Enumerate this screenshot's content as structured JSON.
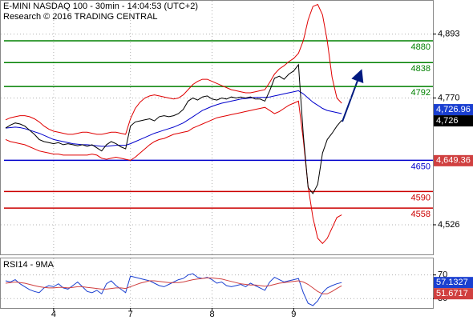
{
  "chart_data": [
    {
      "type": "line",
      "title": "E-MINI NASDAQ 100 - 30min - 14:04:53 (UTC+2)",
      "subtitle": "Research © 2016 TRADING CENTRAL",
      "x": [
        0,
        1,
        2,
        3,
        4,
        5,
        6,
        7,
        8,
        9,
        10,
        11,
        12,
        13,
        14,
        15,
        16,
        17,
        18,
        19,
        20,
        21,
        22,
        23,
        24,
        25,
        26,
        27,
        28,
        29,
        30,
        31,
        32,
        33,
        34,
        35,
        36,
        37,
        38,
        39,
        40,
        41,
        42,
        43,
        44,
        45,
        46,
        47,
        48,
        49,
        50,
        51,
        52,
        53,
        54,
        55,
        56,
        57,
        58,
        59,
        60,
        61,
        62,
        63,
        64,
        65,
        66,
        67,
        68,
        69,
        70
      ],
      "xlim": [
        -1,
        89
      ],
      "ylim": [
        4469,
        4957
      ],
      "grid": true,
      "yticks": [
        {
          "value": 4893,
          "label": "4,893"
        },
        {
          "value": 4770,
          "label": "4,770"
        },
        {
          "value": 4526,
          "label": "4,526"
        }
      ],
      "series": [
        {
          "color": "#e00000",
          "values": [
            4728,
            4732,
            4734,
            4736,
            4736,
            4734,
            4730,
            4724,
            4716,
            4710,
            4706,
            4704,
            4702,
            4700,
            4700,
            4702,
            4704,
            4704,
            4702,
            4700,
            4700,
            4702,
            4704,
            4704,
            4702,
            4700,
            4730,
            4750,
            4762,
            4770,
            4774,
            4776,
            4774,
            4772,
            4770,
            4768,
            4770,
            4776,
            4786,
            4796,
            4802,
            4806,
            4806,
            4802,
            4798,
            4794,
            4790,
            4786,
            4784,
            4782,
            4780,
            4780,
            4782,
            4784,
            4786,
            4800,
            4816,
            4826,
            4832,
            4840,
            4846,
            4856,
            4880,
            4920,
            4946,
            4950,
            4930,
            4880,
            4810,
            4770,
            4760
          ]
        },
        {
          "color": "#e00000",
          "values": [
            4690,
            4686,
            4684,
            4682,
            4680,
            4676,
            4672,
            4668,
            4666,
            4664,
            4662,
            4662,
            4660,
            4660,
            4660,
            4660,
            4660,
            4660,
            4662,
            4660,
            4654,
            4652,
            4654,
            4656,
            4654,
            4652,
            4650,
            4656,
            4664,
            4672,
            4680,
            4686,
            4690,
            4692,
            4696,
            4700,
            4702,
            4704,
            4706,
            4712,
            4716,
            4720,
            4724,
            4728,
            4732,
            4734,
            4736,
            4738,
            4740,
            4742,
            4744,
            4746,
            4748,
            4750,
            4752,
            4746,
            4740,
            4744,
            4750,
            4756,
            4760,
            4764,
            4690,
            4600,
            4540,
            4500,
            4490,
            4500,
            4520,
            4540,
            4545
          ]
        },
        {
          "color": "#0000cc",
          "values": [
            4712,
            4713,
            4714,
            4713,
            4711,
            4708,
            4705,
            4702,
            4698,
            4694,
            4690,
            4688,
            4686,
            4684,
            4682,
            4681,
            4680,
            4680,
            4679,
            4678,
            4677,
            4677,
            4678,
            4679,
            4679,
            4679,
            4682,
            4686,
            4690,
            4694,
            4698,
            4702,
            4705,
            4708,
            4711,
            4714,
            4718,
            4722,
            4728,
            4734,
            4740,
            4746,
            4750,
            4754,
            4757,
            4760,
            4762,
            4764,
            4766,
            4768,
            4769,
            4770,
            4771,
            4771,
            4771,
            4772,
            4774,
            4776,
            4778,
            4780,
            4782,
            4784,
            4778,
            4770,
            4762,
            4756,
            4750,
            4746,
            4744,
            4742,
            4740
          ]
        },
        {
          "color": "#000000",
          "values": [
            4712,
            4718,
            4722,
            4720,
            4716,
            4708,
            4700,
            4690,
            4686,
            4684,
            4682,
            4684,
            4680,
            4682,
            4680,
            4678,
            4680,
            4677,
            4680,
            4674,
            4668,
            4680,
            4686,
            4682,
            4676,
            4672,
            4716,
            4724,
            4726,
            4728,
            4730,
            4726,
            4734,
            4736,
            4734,
            4736,
            4740,
            4748,
            4764,
            4770,
            4766,
            4772,
            4774,
            4768,
            4766,
            4770,
            4768,
            4772,
            4770,
            4772,
            4770,
            4772,
            4768,
            4768,
            4764,
            4784,
            4808,
            4812,
            4806,
            4816,
            4822,
            4834,
            4700,
            4598,
            4586,
            4604,
            4664,
            4690,
            4702,
            4716,
            4727
          ]
        }
      ],
      "levels": [
        {
          "value": 4880,
          "color": "#008000"
        },
        {
          "value": 4838,
          "color": "#008000"
        },
        {
          "value": 4792,
          "color": "#008000"
        },
        {
          "value": 4650,
          "color": "#0000cc"
        },
        {
          "value": 4590,
          "color": "#cc0000"
        },
        {
          "value": 4558,
          "color": "#cc0000"
        }
      ],
      "price_labels": [
        {
          "value": 4726,
          "label": "4,726",
          "color": "#000000"
        },
        {
          "value": 4726.96,
          "label": "4,726.96",
          "color": "#1a3fd0"
        },
        {
          "value": 4649.36,
          "label": "4,649.36",
          "color": "#d04040"
        }
      ]
    },
    {
      "type": "line",
      "title": "RSI14 - 9MA",
      "x": [
        0,
        1,
        2,
        3,
        4,
        5,
        6,
        7,
        8,
        9,
        10,
        11,
        12,
        13,
        14,
        15,
        16,
        17,
        18,
        19,
        20,
        21,
        22,
        23,
        24,
        25,
        26,
        27,
        28,
        29,
        30,
        31,
        32,
        33,
        34,
        35,
        36,
        37,
        38,
        39,
        40,
        41,
        42,
        43,
        44,
        45,
        46,
        47,
        48,
        49,
        50,
        51,
        52,
        53,
        54,
        55,
        56,
        57,
        58,
        59,
        60,
        61,
        62,
        63,
        64,
        65,
        66,
        67,
        68,
        69,
        70
      ],
      "xlim": [
        -1,
        89
      ],
      "ylim": [
        14,
        98
      ],
      "grid": true,
      "yticks": [
        70,
        30
      ],
      "xticks": [
        {
          "value": 10,
          "label": "4"
        },
        {
          "value": 26,
          "label": "7"
        },
        {
          "value": 43,
          "label": "8"
        },
        {
          "value": 60,
          "label": "9"
        }
      ],
      "series": [
        {
          "color": "#1a3fd0",
          "values": [
            60,
            58,
            62,
            55,
            50,
            45,
            42,
            40,
            48,
            52,
            50,
            55,
            48,
            46,
            52,
            58,
            50,
            42,
            40,
            44,
            38,
            55,
            60,
            52,
            46,
            40,
            68,
            66,
            64,
            62,
            60,
            56,
            52,
            50,
            54,
            58,
            62,
            64,
            70,
            72,
            66,
            64,
            66,
            62,
            56,
            58,
            52,
            50,
            52,
            54,
            50,
            56,
            52,
            48,
            44,
            58,
            66,
            62,
            58,
            60,
            62,
            64,
            40,
            22,
            18,
            26,
            40,
            48,
            52,
            55,
            57.1327
          ]
        },
        {
          "color": "#d04040",
          "values": [
            56,
            57,
            58,
            57,
            56,
            54,
            52,
            50,
            49,
            48,
            48,
            49,
            49,
            48,
            49,
            50,
            50,
            49,
            48,
            47,
            46,
            46,
            47,
            48,
            48,
            47,
            50,
            53,
            56,
            58,
            60,
            60,
            59,
            58,
            57,
            57,
            57,
            58,
            60,
            62,
            63,
            64,
            65,
            65,
            64,
            63,
            61,
            59,
            57,
            55,
            54,
            53,
            53,
            52,
            51,
            52,
            54,
            56,
            57,
            58,
            59,
            60,
            58,
            54,
            48,
            42,
            38,
            38,
            42,
            47,
            51.6717
          ]
        }
      ]
    }
  ]
}
